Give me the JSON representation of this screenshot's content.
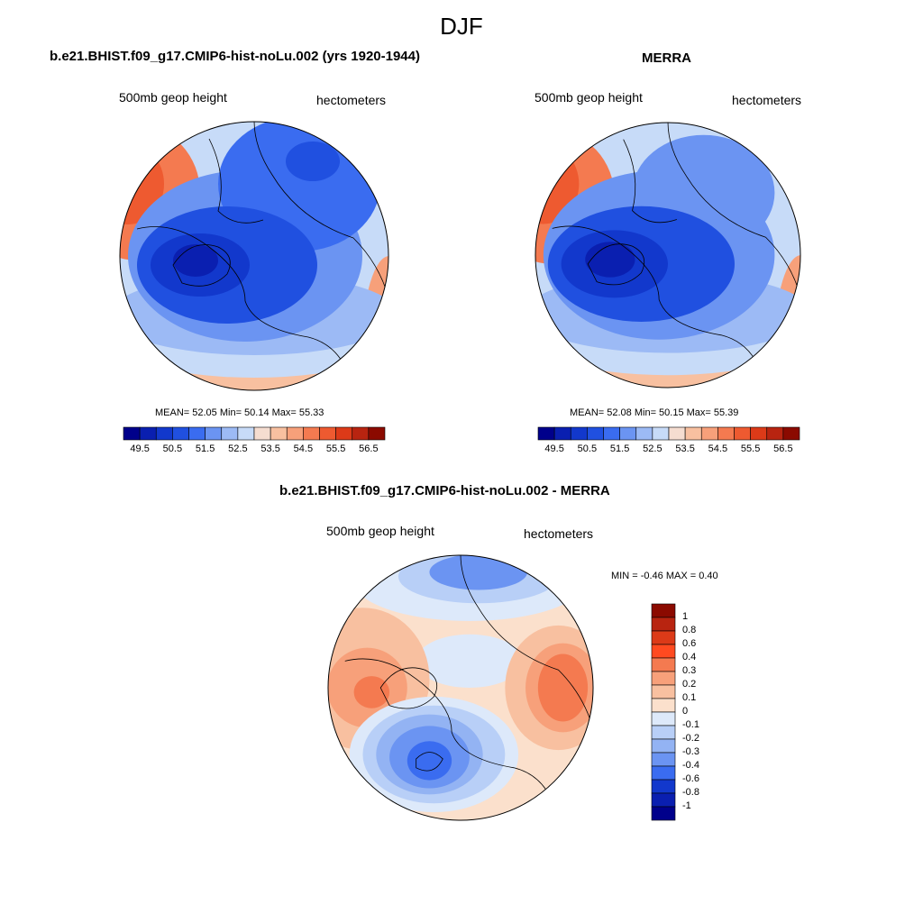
{
  "title": "DJF",
  "panels": [
    {
      "title": "b.e21.BHIST.f09_g17.CMIP6-hist-noLu.002 (yrs 1920-1944)",
      "left_label": "500mb geop height",
      "right_label": "hectometers",
      "stats": "MEAN=  52.05  Min=  50.14  Max=  55.33"
    },
    {
      "title": "MERRA",
      "left_label": "500mb geop height",
      "right_label": "hectometers",
      "stats": "MEAN=  52.08  Min=  50.15  Max=  55.39"
    },
    {
      "title": "b.e21.BHIST.f09_g17.CMIP6-hist-noLu.002 - MERRA",
      "left_label": "500mb geop height",
      "right_label": "hectometers",
      "stats": "MIN =  -0.46 MAX =   0.40"
    }
  ],
  "colorbar_horizontal": {
    "labels": [
      "49.5",
      "50.5",
      "51.5",
      "52.5",
      "53.5",
      "54.5",
      "55.5",
      "56.5"
    ],
    "colors": [
      "#00008b",
      "#0a1fb0",
      "#1238cc",
      "#2050e0",
      "#3a6cf0",
      "#6b94f2",
      "#9cbaf5",
      "#c7dbf8",
      "#f5ddd0",
      "#f8c0a0",
      "#f7a07a",
      "#f47a50",
      "#ee5a30",
      "#dc3a18",
      "#b82410",
      "#8b0a00"
    ]
  },
  "colorbar_vertical": {
    "labels": [
      "1",
      "0.8",
      "0.6",
      "0.4",
      "0.3",
      "0.2",
      "0.1",
      "0",
      "-0.1",
      "-0.2",
      "-0.3",
      "-0.4",
      "-0.6",
      "-0.8",
      "-1"
    ],
    "colors": [
      "#8b0a00",
      "#b82410",
      "#dc3a18",
      "#ff4a20",
      "#f47a50",
      "#f7a07a",
      "#f8c0a0",
      "#fbe0cc",
      "#dde9fa",
      "#b8cff7",
      "#93b3f3",
      "#6b94f2",
      "#3a6cf0",
      "#1238cc",
      "#0a1fb0",
      "#00008b"
    ]
  },
  "chart_data": {
    "type": "heatmap",
    "season": "DJF",
    "variable": "500mb geop height",
    "units": "hectometers",
    "maps": [
      {
        "name": "b.e21.BHIST.f09_g17.CMIP6-hist-noLu.002 (yrs 1920-1944)",
        "mean": 52.05,
        "min": 50.14,
        "max": 55.33,
        "color_levels": [
          49.5,
          50.5,
          51.5,
          52.5,
          53.5,
          54.5,
          55.5,
          56.5
        ]
      },
      {
        "name": "MERRA",
        "mean": 52.08,
        "min": 50.15,
        "max": 55.39,
        "color_levels": [
          49.5,
          50.5,
          51.5,
          52.5,
          53.5,
          54.5,
          55.5,
          56.5
        ]
      },
      {
        "name": "b.e21.BHIST.f09_g17.CMIP6-hist-noLu.002 - MERRA",
        "min": -0.46,
        "max": 0.4,
        "color_levels": [
          -1,
          -0.8,
          -0.6,
          -0.4,
          -0.3,
          -0.2,
          -0.1,
          0,
          0.1,
          0.2,
          0.3,
          0.4,
          0.6,
          0.8,
          1
        ]
      }
    ]
  }
}
